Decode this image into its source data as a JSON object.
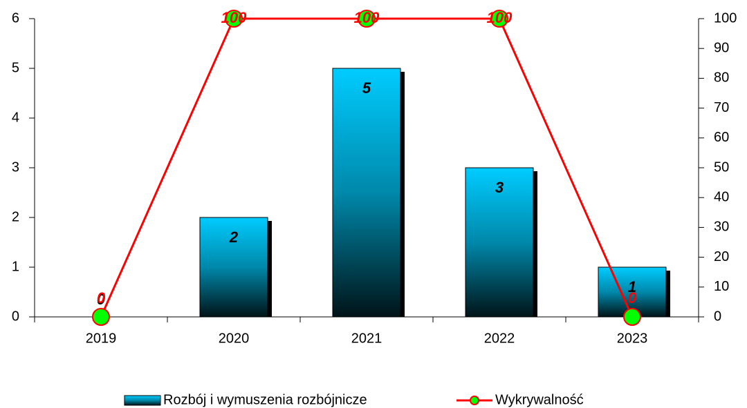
{
  "chart_data": {
    "type": "bar_line",
    "categories": [
      "2019",
      "2020",
      "2021",
      "2022",
      "2023"
    ],
    "series": [
      {
        "name": "Rozbój i wymuszenia rozbójnicze",
        "type": "bar",
        "color": "#00ccff",
        "values": [
          0,
          2,
          5,
          3,
          1
        ]
      },
      {
        "name": "Wykrywalność",
        "type": "line",
        "axis": "y2",
        "color": "#ff0000",
        "marker_color": "#00ff00",
        "values": [
          0,
          100,
          100,
          100,
          0
        ]
      }
    ],
    "ylim": [
      0,
      6
    ],
    "yticks": [
      0,
      1,
      2,
      3,
      4,
      5,
      6
    ],
    "y2lim": [
      0,
      100
    ],
    "y2ticks": [
      0,
      10,
      20,
      30,
      40,
      50,
      60,
      70,
      80,
      90,
      100
    ],
    "grid": false,
    "legend": "bottom"
  }
}
